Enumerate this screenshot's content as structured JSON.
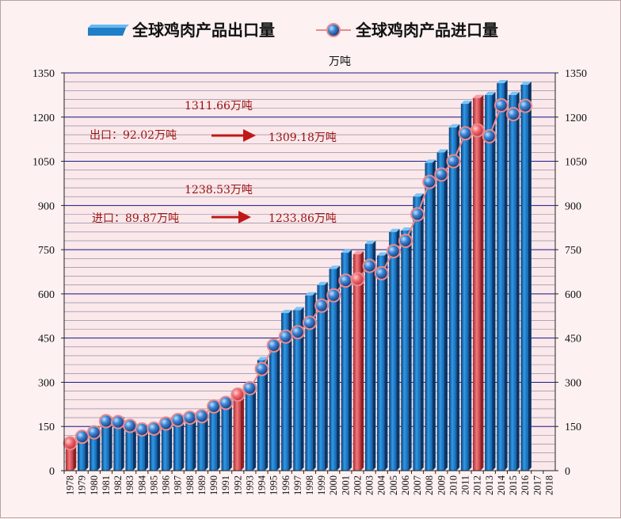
{
  "chart_data": {
    "type": "bar",
    "unit_label": "万吨",
    "categories": [
      "1978",
      "1979",
      "1980",
      "1981",
      "1982",
      "1983",
      "1984",
      "1985",
      "1986",
      "1987",
      "1988",
      "1989",
      "1990",
      "1991",
      "1992",
      "1993",
      "1994",
      "1995",
      "1996",
      "1997",
      "1998",
      "1999",
      "2000",
      "2001",
      "2002",
      "2003",
      "2004",
      "2005",
      "2006",
      "2007",
      "2008",
      "2009",
      "2010",
      "2011",
      "2012",
      "2013",
      "2014",
      "2015",
      "2016",
      "2017",
      "2018"
    ],
    "series": [
      {
        "name": "全球鸡肉产品出口量",
        "kind": "bar",
        "color": "#1e7fc8",
        "highlight_color": "#e0595e",
        "highlight_categories": [
          "1978",
          "1992",
          "2002",
          "2012"
        ],
        "values": [
          90,
          118,
          132,
          172,
          172,
          155,
          142,
          147,
          162,
          175,
          185,
          190,
          218,
          232,
          255,
          285,
          375,
          430,
          535,
          545,
          595,
          630,
          685,
          740,
          735,
          770,
          730,
          810,
          815,
          930,
          1045,
          1080,
          1165,
          1245,
          1265,
          1275,
          1315,
          1275,
          1310,
          null,
          null
        ]
      },
      {
        "name": "全球鸡肉产品进口量",
        "kind": "line-marker",
        "color": "#3b7fd0",
        "values": [
          93,
          115,
          130,
          168,
          165,
          152,
          140,
          143,
          160,
          172,
          180,
          185,
          218,
          230,
          258,
          280,
          345,
          425,
          455,
          470,
          502,
          560,
          595,
          645,
          650,
          695,
          670,
          745,
          780,
          870,
          980,
          1005,
          1050,
          1145,
          1155,
          1135,
          1240,
          1210,
          1238,
          null,
          null
        ]
      }
    ],
    "ylim": [
      0,
      1350
    ],
    "yticks": [
      0,
      150,
      300,
      450,
      600,
      750,
      900,
      1050,
      1200,
      1350
    ],
    "annotations": {
      "export_peak": "1311.66万吨",
      "export_change": "出口：92.02万吨",
      "export_latest": "1309.18万吨",
      "import_peak": "1238.53万吨",
      "import_change": "进口：89.87万吨",
      "import_latest": "1233.86万吨"
    }
  }
}
